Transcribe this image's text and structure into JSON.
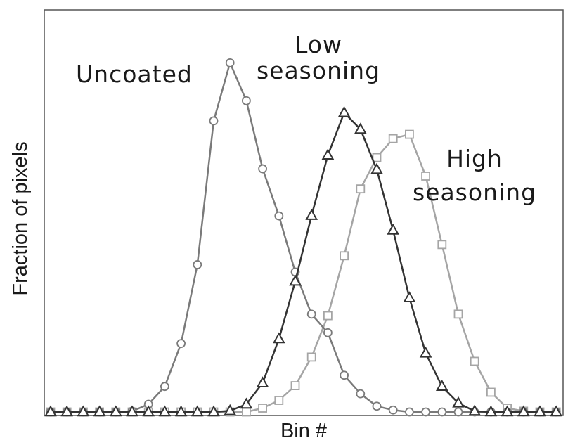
{
  "chart_data": {
    "type": "line",
    "title": "",
    "xlabel": "Bin #",
    "ylabel": "Fraction of pixels",
    "x_ticks_shown": false,
    "y_ticks_shown": false,
    "grid": false,
    "legend": "none",
    "xlim": [
      0,
      31
    ],
    "ylim": [
      0,
      1.0
    ],
    "annotations": [
      {
        "key": "uncoated",
        "lines": [
          "Uncoated"
        ]
      },
      {
        "key": "low",
        "lines": [
          "Low",
          "seasoning"
        ]
      },
      {
        "key": "high",
        "lines": [
          "High",
          "seasoning"
        ]
      }
    ],
    "series": [
      {
        "key": "uncoated",
        "marker": "circle",
        "color": "#7a7a7a",
        "x": [
          0,
          1,
          2,
          3,
          4,
          5,
          6,
          7,
          8,
          9,
          10,
          11,
          12,
          13,
          14,
          15,
          16,
          17,
          18,
          19,
          20,
          21,
          22,
          23,
          24,
          25,
          26,
          27,
          28,
          29,
          30,
          31
        ],
        "y": [
          0,
          0,
          0,
          0,
          0,
          0.002,
          0.02,
          0.066,
          0.177,
          0.381,
          0.753,
          0.903,
          0.805,
          0.629,
          0.507,
          0.362,
          0.253,
          0.205,
          0.095,
          0.047,
          0.015,
          0.005,
          0,
          0,
          0,
          0,
          0,
          0,
          0,
          0,
          0,
          0
        ]
      },
      {
        "key": "low",
        "marker": "triangle",
        "color": "#333333",
        "x": [
          0,
          1,
          2,
          3,
          4,
          5,
          6,
          7,
          8,
          9,
          10,
          11,
          12,
          13,
          14,
          15,
          16,
          17,
          18,
          19,
          20,
          21,
          22,
          23,
          24,
          25,
          26,
          27,
          28,
          29,
          30,
          31
        ],
        "y": [
          0,
          0,
          0,
          0,
          0,
          0,
          0,
          0,
          0,
          0,
          0,
          0.003,
          0.02,
          0.075,
          0.189,
          0.338,
          0.508,
          0.664,
          0.774,
          0.731,
          0.627,
          0.47,
          0.295,
          0.152,
          0.066,
          0.023,
          0.002,
          0,
          0,
          0,
          0,
          0
        ]
      },
      {
        "key": "high",
        "marker": "square",
        "color": "#a5a5a5",
        "x": [
          0,
          1,
          2,
          3,
          4,
          5,
          6,
          7,
          8,
          9,
          10,
          11,
          12,
          13,
          14,
          15,
          16,
          17,
          18,
          19,
          20,
          21,
          22,
          23,
          24,
          25,
          26,
          27,
          28,
          29,
          30,
          31
        ],
        "y": [
          0,
          0,
          0,
          0,
          0,
          0,
          0,
          0,
          0,
          0,
          0,
          0,
          0,
          0.01,
          0.03,
          0.068,
          0.142,
          0.249,
          0.404,
          0.577,
          0.658,
          0.707,
          0.718,
          0.61,
          0.433,
          0.253,
          0.131,
          0.051,
          0.01,
          0.002,
          0,
          0
        ]
      }
    ]
  }
}
